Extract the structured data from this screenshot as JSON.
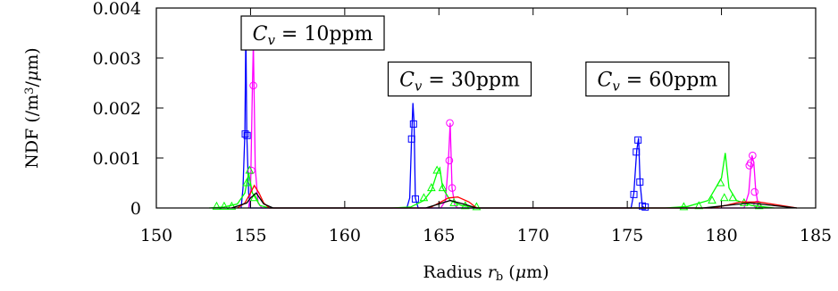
{
  "chart_data": {
    "type": "line",
    "xlabel": "Radius $r_b$ ($\\mu$m)",
    "ylabel": "NDF (/m$^3$/$\\mu$m)",
    "xlim": [
      150,
      185
    ],
    "ylim": [
      0,
      0.004
    ],
    "x_ticks": [
      150,
      155,
      160,
      165,
      170,
      175,
      180,
      185
    ],
    "x_tick_labels": [
      "150",
      "155",
      "160",
      "165",
      "170",
      "175",
      "180",
      "185"
    ],
    "y_ticks": [
      0,
      0.001,
      0.002,
      0.003,
      0.004
    ],
    "y_tick_labels": [
      "0",
      "0.001",
      "0.002",
      "0.003",
      "0.004"
    ],
    "grid": false,
    "annotations": [
      {
        "text": "C_v = 10ppm",
        "x": 158.3,
        "y": 0.0035
      },
      {
        "text": "C_v = 30ppm",
        "x": 166.1,
        "y": 0.00258
      },
      {
        "text": "C_v = 60ppm",
        "x": 176.6,
        "y": 0.00258
      }
    ],
    "series": [
      {
        "color": "#0000ff",
        "marker": "square",
        "values": [
          [
            154.5,
            0
          ],
          [
            154.6,
            0.0004
          ],
          [
            154.7,
            0.0015
          ],
          [
            154.75,
            0.0036
          ],
          [
            154.8,
            0.0015
          ],
          [
            154.9,
            0.0003
          ],
          [
            155.0,
            0
          ],
          [
            163.3,
            0
          ],
          [
            163.45,
            0.0002
          ],
          [
            163.55,
            0.0014
          ],
          [
            163.62,
            0.0021
          ],
          [
            163.68,
            0.0017
          ],
          [
            163.75,
            0.0002
          ],
          [
            163.9,
            0
          ],
          [
            175.2,
            0
          ],
          [
            175.35,
            0.0003
          ],
          [
            175.5,
            0.00115
          ],
          [
            175.6,
            0.0014
          ],
          [
            175.68,
            0.0005
          ],
          [
            175.8,
            3e-05
          ],
          [
            175.95,
            0
          ]
        ],
        "markers_at": [
          [
            154.72,
            0.00148
          ],
          [
            154.82,
            0.00145
          ],
          [
            163.55,
            0.00138
          ],
          [
            163.65,
            0.00168
          ],
          [
            163.75,
            0.00018
          ],
          [
            175.35,
            0.00027
          ],
          [
            175.48,
            0.00112
          ],
          [
            175.57,
            0.00136
          ],
          [
            175.67,
            0.00052
          ],
          [
            175.8,
            4e-05
          ],
          [
            175.95,
            2e-05
          ]
        ]
      },
      {
        "color": "#ff00ff",
        "marker": "circle",
        "values": [
          [
            154.9,
            0
          ],
          [
            155.0,
            0.0003
          ],
          [
            155.1,
            0.0024
          ],
          [
            155.15,
            0.0033
          ],
          [
            155.25,
            0.0008
          ],
          [
            155.4,
            0.0001
          ],
          [
            155.6,
            0
          ],
          [
            165.1,
            0
          ],
          [
            165.35,
            0.00015
          ],
          [
            165.5,
            0.0009
          ],
          [
            165.6,
            0.0017
          ],
          [
            165.7,
            0.0004
          ],
          [
            165.85,
            5e-05
          ],
          [
            166.0,
            0
          ],
          [
            181.2,
            0
          ],
          [
            181.45,
            0.0003
          ],
          [
            181.55,
            0.0008
          ],
          [
            181.62,
            0.00105
          ],
          [
            181.72,
            0.0009
          ],
          [
            181.82,
            0.00035
          ],
          [
            181.95,
            5e-05
          ],
          [
            182.1,
            0
          ]
        ],
        "markers_at": [
          [
            155.15,
            0.00245
          ],
          [
            155.05,
            0.00075
          ],
          [
            165.55,
            0.00095
          ],
          [
            165.58,
            0.0017
          ],
          [
            165.7,
            0.0004
          ],
          [
            181.48,
            0.00085
          ],
          [
            181.55,
            0.0009
          ],
          [
            181.65,
            0.00105
          ],
          [
            181.76,
            0.00032
          ],
          [
            181.9,
            7e-05
          ]
        ]
      },
      {
        "color": "#00ff00",
        "marker": "triangle",
        "values": [
          [
            152.8,
            0
          ],
          [
            153.6,
            2e-05
          ],
          [
            154.3,
            8e-05
          ],
          [
            154.7,
            0.0003
          ],
          [
            154.9,
            0.0007
          ],
          [
            155.1,
            0.0003
          ],
          [
            155.5,
            5e-05
          ],
          [
            156.0,
            0
          ],
          [
            162.5,
            0
          ],
          [
            163.5,
            2e-05
          ],
          [
            164.2,
            0.00015
          ],
          [
            164.6,
            0.00035
          ],
          [
            164.9,
            0.0007
          ],
          [
            165.05,
            0.0008
          ],
          [
            165.2,
            0.0004
          ],
          [
            165.6,
            0.00015
          ],
          [
            166.2,
            5e-05
          ],
          [
            167.2,
            0
          ],
          [
            177.0,
            0
          ],
          [
            178.2,
            3e-05
          ],
          [
            179.3,
            0.00015
          ],
          [
            180.0,
            0.0006
          ],
          [
            180.2,
            0.0011
          ],
          [
            180.4,
            0.0004
          ],
          [
            180.8,
            0.00015
          ],
          [
            181.6,
            5e-05
          ],
          [
            182.8,
            0
          ]
        ],
        "markers_at": [
          [
            153.2,
            3e-05
          ],
          [
            153.6,
            3e-05
          ],
          [
            154.0,
            3e-05
          ],
          [
            154.8,
            0.0005
          ],
          [
            154.95,
            0.00075
          ],
          [
            155.2,
            0.0002
          ],
          [
            164.2,
            0.0002
          ],
          [
            164.6,
            0.0004
          ],
          [
            164.9,
            0.00075
          ],
          [
            165.2,
            0.0004
          ],
          [
            165.8,
            0.0001
          ],
          [
            166.4,
            4e-05
          ],
          [
            167.0,
            2e-05
          ],
          [
            178.0,
            2e-05
          ],
          [
            178.8,
            4e-05
          ],
          [
            179.5,
            0.00015
          ],
          [
            179.95,
            0.0005
          ],
          [
            180.15,
            0.0002
          ],
          [
            180.6,
            0.0002
          ],
          [
            181.2,
            0.0001
          ],
          [
            182.0,
            4e-05
          ]
        ]
      },
      {
        "color": "#ff0000",
        "marker": "none",
        "values": [
          [
            154.3,
            0
          ],
          [
            154.7,
            0.0001
          ],
          [
            155.0,
            0.0003
          ],
          [
            155.2,
            0.00045
          ],
          [
            155.45,
            0.0003
          ],
          [
            155.7,
            0.0001
          ],
          [
            156.0,
            0
          ],
          [
            164.5,
            0
          ],
          [
            165.0,
            0.0001
          ],
          [
            165.5,
            0.0002
          ],
          [
            166.0,
            0.00022
          ],
          [
            166.6,
            0.00012
          ],
          [
            167.0,
            0
          ],
          [
            179.5,
            0
          ],
          [
            180.2,
            5e-05
          ],
          [
            181.0,
            0.00012
          ],
          [
            182.0,
            0.00012
          ],
          [
            183.0,
            6e-05
          ],
          [
            184.0,
            0
          ]
        ],
        "markers_at": []
      },
      {
        "color": "#000000",
        "marker": "none",
        "values": [
          [
            154.0,
            0
          ],
          [
            154.8,
            0.0001
          ],
          [
            155.0,
            0.0002
          ],
          [
            155.3,
            0.0003
          ],
          [
            155.7,
            8e-05
          ],
          [
            156.2,
            0
          ],
          [
            164.3,
            0
          ],
          [
            165.0,
            8e-05
          ],
          [
            165.6,
            0.00015
          ],
          [
            166.3,
            8e-05
          ],
          [
            167.0,
            0
          ],
          [
            179.0,
            0
          ],
          [
            180.5,
            6e-05
          ],
          [
            181.5,
            0.0001
          ],
          [
            182.5,
            6e-05
          ],
          [
            184.0,
            0
          ]
        ],
        "markers_at": []
      }
    ]
  }
}
